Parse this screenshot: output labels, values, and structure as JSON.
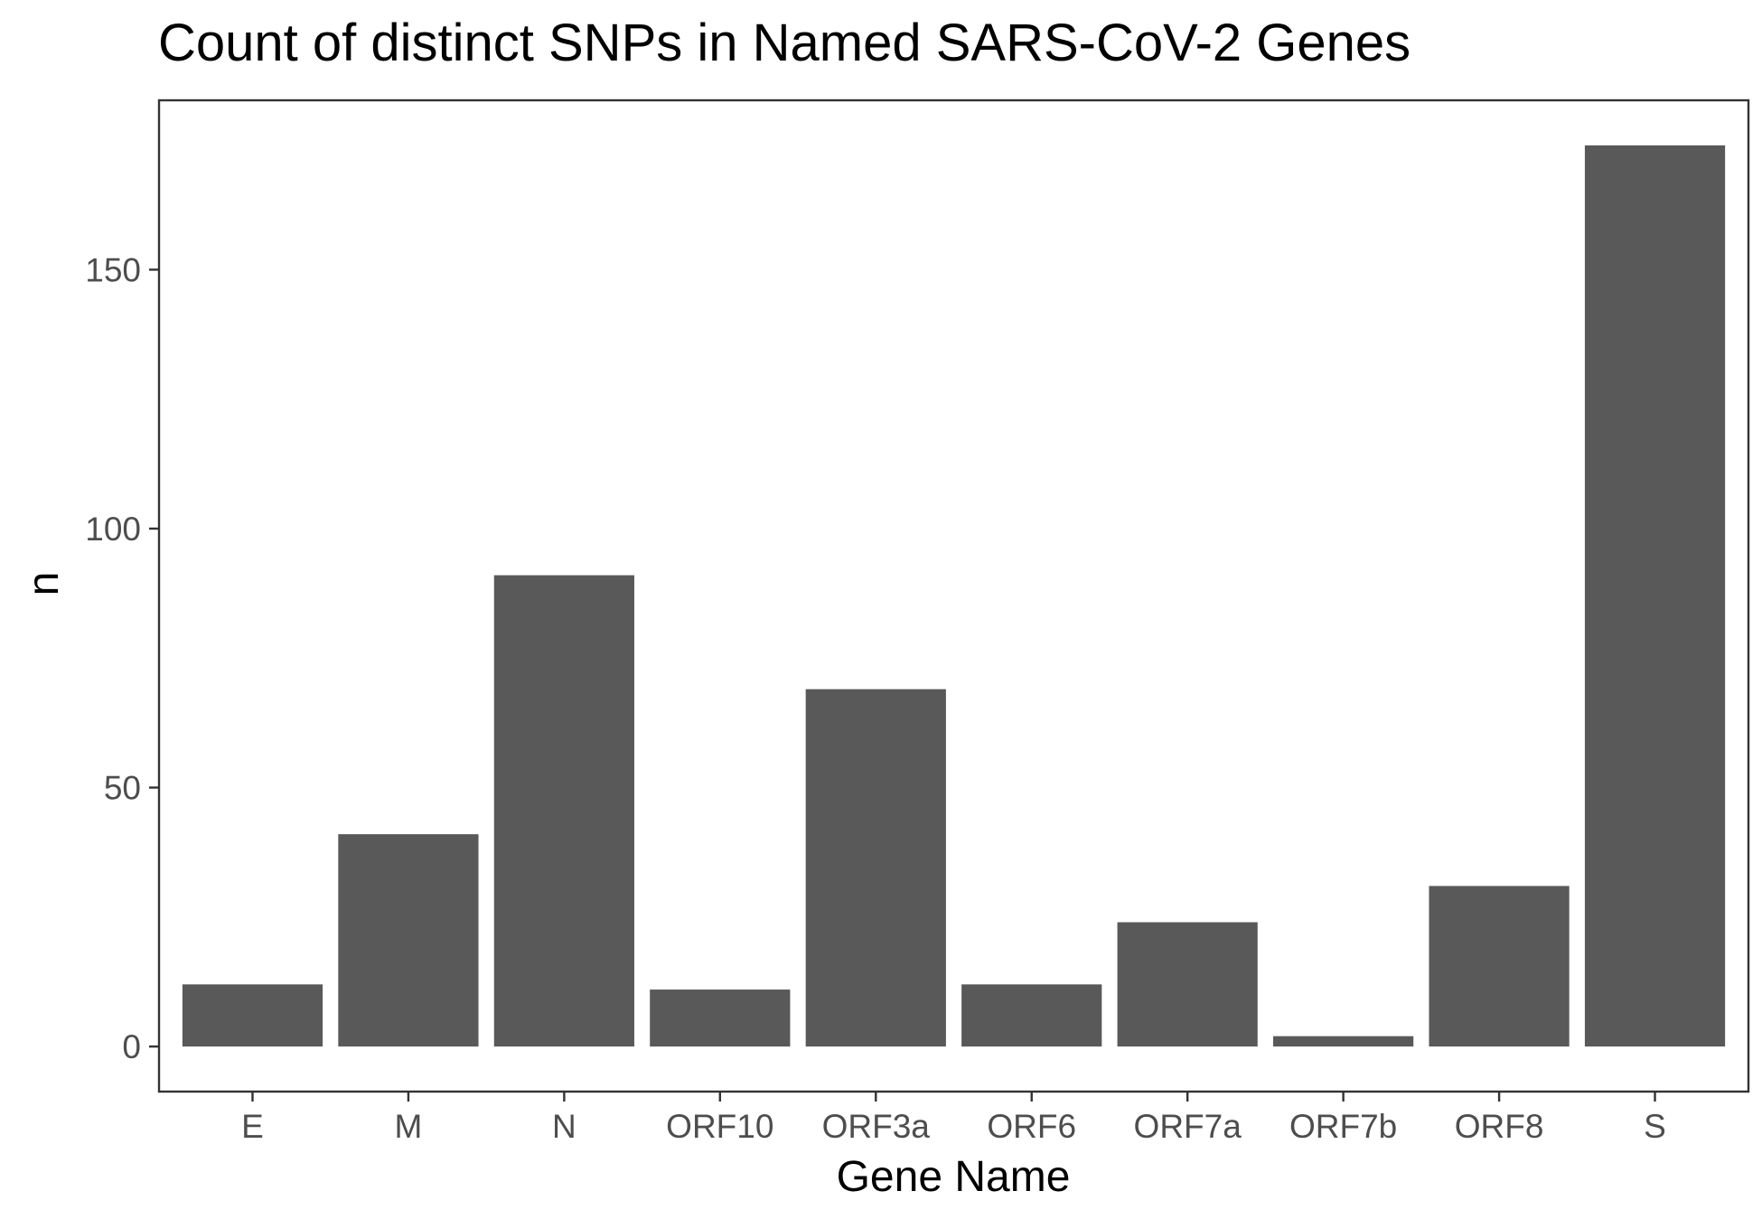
{
  "chart_data": {
    "type": "bar",
    "title": "Count of distinct SNPs in Named SARS-CoV-2 Genes",
    "xlabel": "Gene Name",
    "ylabel": "n",
    "categories": [
      "E",
      "M",
      "N",
      "ORF10",
      "ORF3a",
      "ORF6",
      "ORF7a",
      "ORF7b",
      "ORF8",
      "S"
    ],
    "values": [
      12,
      41,
      91,
      11,
      69,
      12,
      24,
      2,
      31,
      174
    ],
    "ylim": [
      -8.7,
      182.7
    ],
    "yticks": [
      0,
      50,
      100,
      150
    ],
    "ytick_labels": [
      "0",
      "50",
      "100",
      "150"
    ],
    "bar_color": "#595959",
    "grid": false,
    "legend": "none"
  }
}
